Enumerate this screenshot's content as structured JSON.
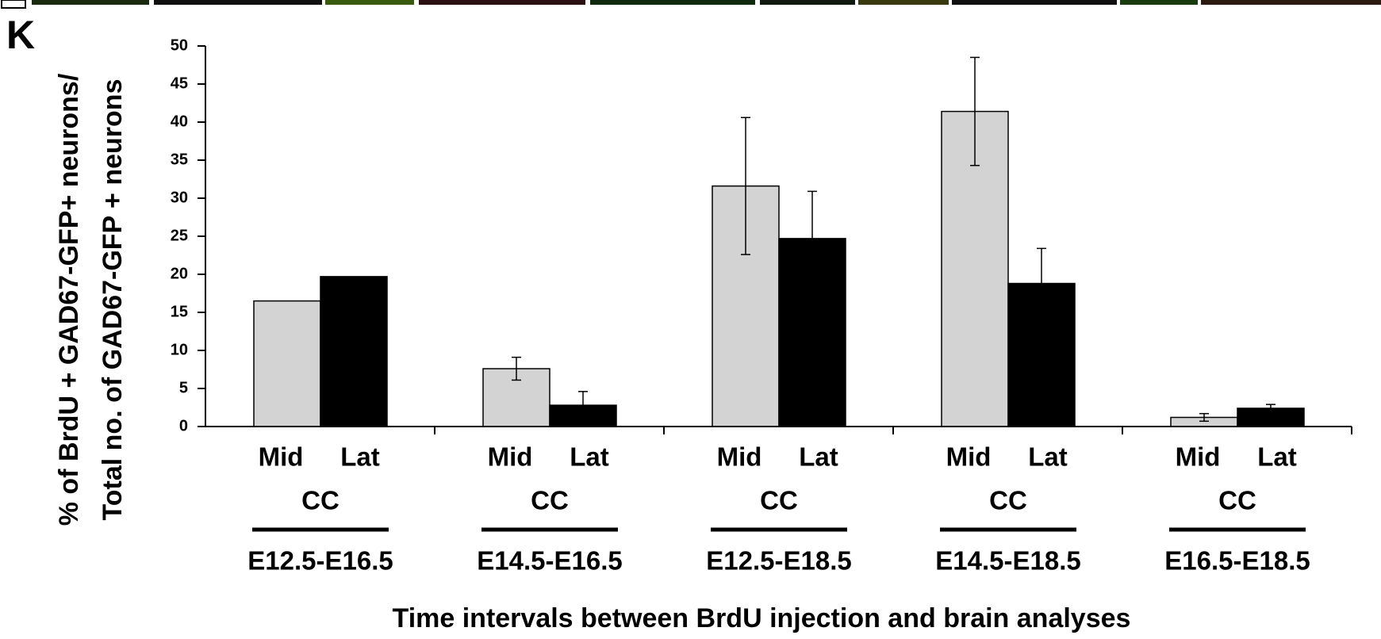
{
  "chart_data": {
    "type": "bar",
    "panel_label": "K",
    "y_label_lines": [
      "% of BrdU + GAD67-GFP+ neurons/",
      "Total no. of GAD67-GFP + neurons"
    ],
    "x_label": "Time intervals between BrdU injection and brain analyses",
    "group_label": "CC",
    "categories": [
      "E12.5-E16.5",
      "E14.5-E16.5",
      "E12.5-E18.5",
      "E14.5-E18.5",
      "E16.5-E18.5"
    ],
    "series": [
      {
        "name": "Mid",
        "color": "#d3d3d3",
        "values": [
          16.5,
          7.6,
          31.6,
          41.4,
          1.2
        ],
        "errors": [
          null,
          1.5,
          9.0,
          7.1,
          0.5
        ]
      },
      {
        "name": "Lat",
        "color": "#000000",
        "values": [
          19.7,
          2.8,
          24.7,
          18.8,
          2.4
        ],
        "errors": [
          null,
          1.8,
          6.2,
          4.6,
          0.5
        ]
      }
    ],
    "ylim": [
      0,
      50
    ],
    "yticks": [
      0,
      5,
      10,
      15,
      20,
      25,
      30,
      35,
      40,
      45,
      50
    ]
  }
}
